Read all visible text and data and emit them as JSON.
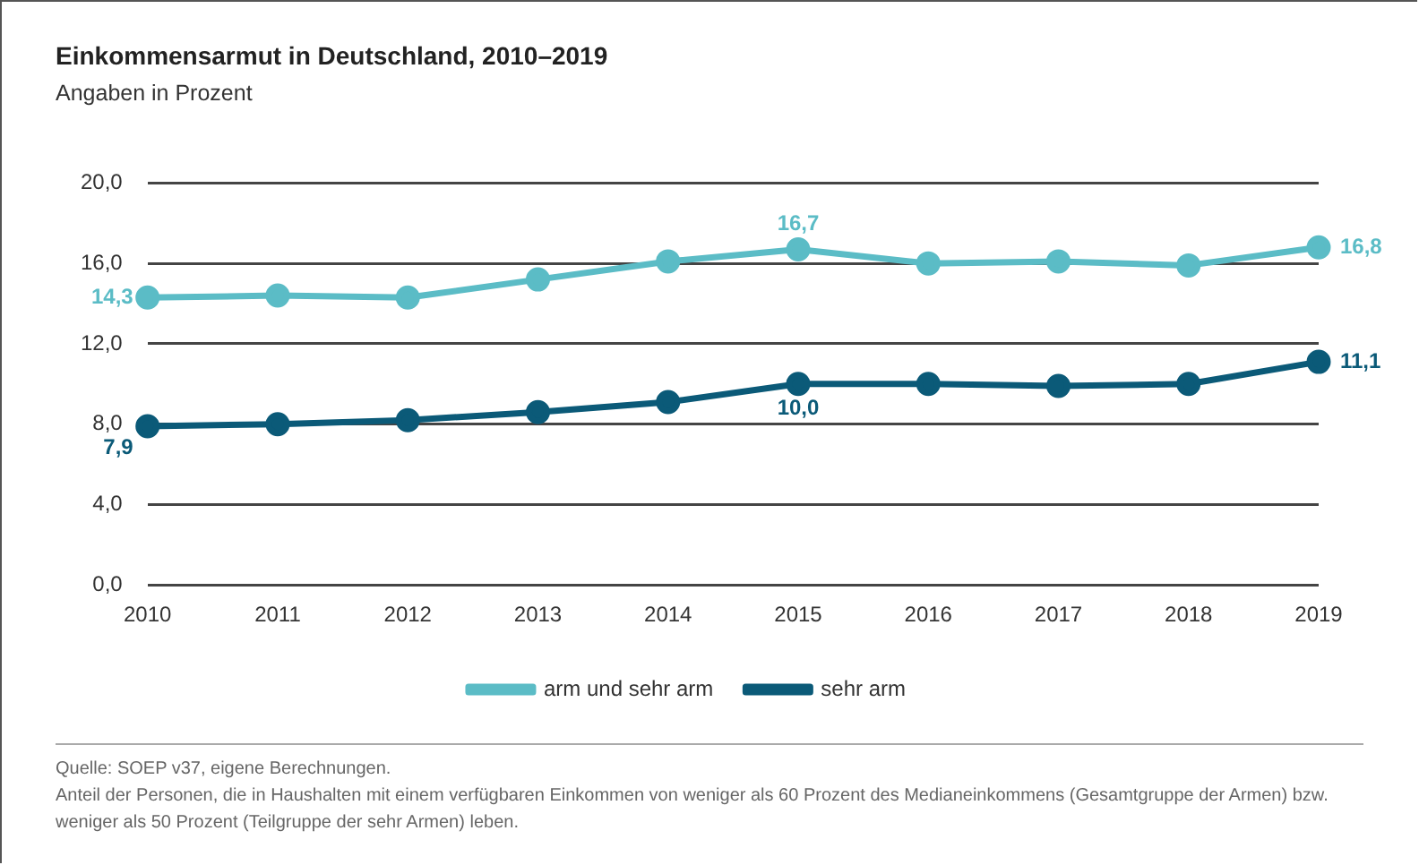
{
  "chart_data": {
    "type": "line",
    "title": "Einkommensarmut in Deutschland, 2010–2019",
    "subtitle": "Angaben in Prozent",
    "categories": [
      "2010",
      "2011",
      "2012",
      "2013",
      "2014",
      "2015",
      "2016",
      "2017",
      "2018",
      "2019"
    ],
    "series": [
      {
        "name": "arm und sehr arm",
        "color": "#5bbcc6",
        "values": [
          14.3,
          14.4,
          14.3,
          15.2,
          16.1,
          16.7,
          16.0,
          16.1,
          15.9,
          16.8
        ],
        "value_labels": [
          "14,3",
          null,
          null,
          null,
          null,
          "16,7",
          null,
          null,
          null,
          "16,8"
        ]
      },
      {
        "name": "sehr arm",
        "color": "#0b5a78",
        "values": [
          7.9,
          8.0,
          8.2,
          8.6,
          9.1,
          10.0,
          10.0,
          9.9,
          10.0,
          11.1
        ],
        "value_labels": [
          "7,9",
          null,
          null,
          null,
          null,
          "10,0",
          null,
          null,
          null,
          "11,1"
        ]
      }
    ],
    "ylim": [
      0,
      20
    ],
    "yticks": [
      {
        "value": 0,
        "label": "0,0"
      },
      {
        "value": 4,
        "label": "4,0"
      },
      {
        "value": 8,
        "label": "8,0"
      },
      {
        "value": 12,
        "label": "12,0"
      },
      {
        "value": 16,
        "label": "16,0"
      },
      {
        "value": 20,
        "label": "20,0"
      }
    ],
    "grid": "y",
    "legend": "bottom",
    "marker": "circle",
    "line_style": "solid",
    "annotations": [
      "Quelle: SOEP v37, eigene Berechnungen.",
      "Anteil der Personen, die in Haushalten mit einem verfügbaren Einkommen von weniger als 60 Prozent des Medianeinkommens (Gesamtgruppe der Armen) bzw. weniger als 50 Prozent (Teilgruppe der sehr Armen) leben."
    ]
  }
}
